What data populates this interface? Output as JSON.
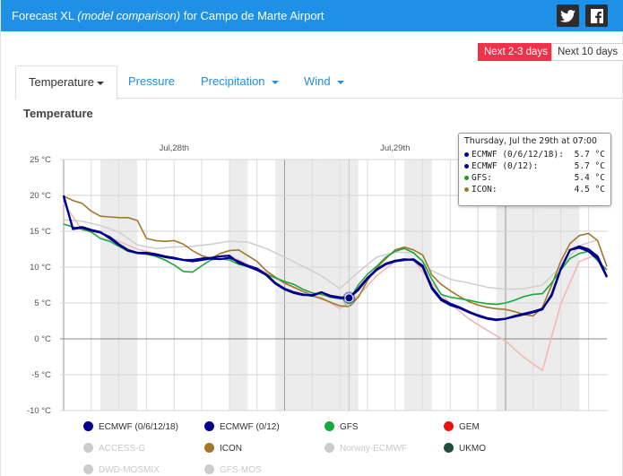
{
  "header": {
    "title_prefix": "Forecast XL",
    "title_em": "(model comparison)",
    "title_suffix": "for Campo de Marte Airport",
    "twitter_icon": "twitter-icon",
    "facebook_icon": "facebook-icon"
  },
  "ranges": {
    "active": "Next 2-3 days",
    "inactive": "Next 10 days"
  },
  "tabs": [
    {
      "label": "Temperature"
    },
    {
      "label": "Pressure"
    },
    {
      "label": "Precipitation"
    },
    {
      "label": "Wind"
    }
  ],
  "panel_title": "Temperature",
  "tooltip": {
    "header": "Thursday, Jul the 29th at 07:00",
    "rows": [
      {
        "label": "ECMWF (0/6/12/18):",
        "value": "5.7 °C",
        "color": "#00008b"
      },
      {
        "label": "ECMWF (0/12):",
        "value": "5.7 °C",
        "color": "#00008b"
      },
      {
        "label": "GFS:",
        "value": "5.4 °C",
        "color": "#229922"
      },
      {
        "label": "ICON:",
        "value": "4.5 °C",
        "color": "#a0782a"
      }
    ]
  },
  "legend": [
    {
      "label": "ECMWF (0/6/12/18)",
      "color": "#00008b",
      "enabled": true
    },
    {
      "label": "ECMWF (0/12)",
      "color": "#00008b",
      "enabled": true
    },
    {
      "label": "GFS",
      "color": "#1aa83c",
      "enabled": true
    },
    {
      "label": "GEM",
      "color": "#ee1111",
      "enabled": true
    },
    {
      "label": "ACCESS-G",
      "color": "#cccccc",
      "enabled": false
    },
    {
      "label": "ICON",
      "color": "#a0782a",
      "enabled": true
    },
    {
      "label": "Norway-ECMWF",
      "color": "#cccccc",
      "enabled": false
    },
    {
      "label": "UKMO",
      "color": "#1f4f3c",
      "enabled": true
    },
    {
      "label": "DWD-MOSMIX",
      "color": "#cccccc",
      "enabled": false
    },
    {
      "label": "GFS-MOS",
      "color": "#cccccc",
      "enabled": false
    }
  ],
  "chart_data": {
    "type": "line",
    "title": "Temperature",
    "x_unit": "hour",
    "x_day_labels": [
      "Jul,28th",
      "Jul,29th"
    ],
    "ylim": [
      -10,
      25
    ],
    "y_ticks": [
      "25 °C",
      "20 °C",
      "15 °C",
      "10 °C",
      "5 °C",
      "0 °C",
      "-5 °C",
      "-10 °C"
    ],
    "y_tick_values": [
      25,
      20,
      15,
      10,
      5,
      0,
      -5,
      -10
    ],
    "xlim": [
      0,
      59
    ],
    "grid": true,
    "legend_position": "bottom",
    "highlight_x": 31,
    "series": [
      {
        "name": "ECMWF (0/6/12/18)",
        "color": "#00008b",
        "x": [
          0,
          1,
          2,
          3,
          4,
          5,
          6,
          7,
          8,
          9,
          10,
          11,
          12,
          13,
          14,
          15,
          16,
          17,
          18,
          19,
          20,
          21,
          22,
          23,
          24,
          25,
          26,
          27,
          28,
          29,
          30,
          31,
          32,
          33,
          34,
          35,
          36,
          37,
          38,
          39,
          40,
          41,
          42,
          43,
          44,
          45,
          46,
          47,
          48,
          49,
          50,
          51,
          52,
          53,
          54,
          55,
          56,
          57,
          58,
          59
        ],
        "values": [
          20,
          15.3,
          15.5,
          15.1,
          14.8,
          14.2,
          13.2,
          12.4,
          12.0,
          12.0,
          11.8,
          11.5,
          11.3,
          11.0,
          10.8,
          11.0,
          11.2,
          11.1,
          11.3,
          10.8,
          10.2,
          9.8,
          9.0,
          7.8,
          7.0,
          6.5,
          6.2,
          6.0,
          6.5,
          6.0,
          5.8,
          5.7,
          6.8,
          8.4,
          9.6,
          10.4,
          10.8,
          11.0,
          11.1,
          10.2,
          7.2,
          5.6,
          4.9,
          4.4,
          3.8,
          3.3,
          2.9,
          2.7,
          2.8,
          3.2,
          3.5,
          3.8,
          4.2,
          6.0,
          9.7,
          12.4,
          12.9,
          12.5,
          11.5,
          8.7
        ]
      },
      {
        "name": "ECMWF (0/12)",
        "color": "#00008b",
        "x": [
          0,
          1,
          2,
          3,
          4,
          5,
          6,
          7,
          8,
          9,
          10,
          11,
          12,
          13,
          14,
          15,
          16,
          17,
          18,
          19,
          20,
          21,
          22,
          23,
          24,
          25,
          26,
          27,
          28,
          29,
          30,
          31,
          32,
          33,
          34,
          35,
          36,
          37,
          38,
          39,
          40,
          41,
          42,
          43,
          44,
          45,
          46,
          47,
          48,
          49,
          50,
          51,
          52,
          53,
          54,
          55,
          56,
          57,
          58,
          59
        ],
        "values": [
          19.8,
          15.4,
          15.6,
          15.2,
          14.9,
          14.0,
          13.1,
          12.3,
          12.0,
          11.9,
          11.7,
          11.4,
          11.2,
          11.0,
          11.0,
          11.2,
          11.3,
          11.5,
          11.6,
          10.6,
          10.1,
          9.6,
          8.9,
          7.7,
          6.9,
          6.4,
          6.1,
          6.1,
          6.5,
          5.9,
          5.7,
          5.7,
          7.0,
          8.5,
          9.7,
          10.5,
          10.9,
          11.1,
          11.0,
          10.0,
          7.0,
          5.4,
          4.7,
          4.3,
          3.7,
          3.2,
          2.8,
          2.6,
          2.8,
          3.1,
          3.4,
          3.7,
          4.1,
          6.2,
          9.8,
          12.4,
          12.7,
          12.2,
          11.2,
          8.6
        ]
      },
      {
        "name": "GFS",
        "color": "#1aa83c",
        "x": [
          0,
          1,
          2,
          3,
          4,
          5,
          6,
          7,
          8,
          9,
          10,
          11,
          12,
          13,
          14,
          15,
          16,
          17,
          18,
          19,
          20,
          21,
          22,
          23,
          24,
          25,
          26,
          27,
          28,
          29,
          30,
          31,
          32,
          33,
          34,
          35,
          36,
          37,
          38,
          39,
          40,
          41,
          42,
          43,
          44,
          45,
          46,
          47,
          48,
          49,
          50,
          51,
          52,
          53,
          54,
          55,
          56,
          57,
          58,
          59
        ],
        "values": [
          16.0,
          15.6,
          15.3,
          14.9,
          14.0,
          13.6,
          12.9,
          12.2,
          11.9,
          11.8,
          11.5,
          11.0,
          10.3,
          9.4,
          9.3,
          10.2,
          11.0,
          11.2,
          11.0,
          10.4,
          10.1,
          9.8,
          9.0,
          8.5,
          8.0,
          7.6,
          6.9,
          6.4,
          6.2,
          5.8,
          5.6,
          5.4,
          7.5,
          9.0,
          10.1,
          11.4,
          12.2,
          12.6,
          12.0,
          10.8,
          8.3,
          6.2,
          5.8,
          5.6,
          5.4,
          5.1,
          4.9,
          4.8,
          5.0,
          5.4,
          5.9,
          6.2,
          6.3,
          7.8,
          9.6,
          11.2,
          11.9,
          12.2,
          10.9,
          9.6
        ]
      },
      {
        "name": "ICON",
        "color": "#a0782a",
        "x": [
          0,
          1,
          2,
          3,
          4,
          5,
          6,
          7,
          8,
          9,
          10,
          11,
          12,
          13,
          14,
          15,
          16,
          17,
          18,
          19,
          20,
          21,
          22,
          23,
          24,
          25,
          26,
          27,
          28,
          29,
          30,
          31,
          32,
          33,
          34,
          35,
          36,
          37,
          38,
          39,
          40,
          41,
          42,
          43,
          44,
          45,
          46,
          47,
          48,
          49,
          50,
          51,
          52,
          53,
          54,
          55,
          56,
          57,
          58,
          59
        ],
        "values": [
          19.9,
          19.3,
          18.9,
          17.8,
          17.1,
          17.0,
          16.9,
          16.9,
          16.5,
          14.0,
          13.7,
          13.6,
          13.7,
          13.2,
          12.3,
          11.6,
          11.2,
          11.9,
          12.3,
          12.4,
          11.6,
          10.8,
          9.5,
          8.6,
          7.8,
          7.2,
          6.6,
          6.0,
          5.6,
          5.1,
          4.6,
          4.5,
          5.8,
          8.1,
          9.9,
          11.2,
          12.4,
          12.8,
          12.4,
          11.7,
          8.9,
          7.6,
          6.7,
          5.9,
          5.2,
          4.7,
          4.4,
          4.2,
          4.1,
          3.8,
          3.4,
          3.2,
          4.4,
          7.5,
          10.8,
          13.3,
          14.4,
          14.7,
          13.7,
          10.1
        ]
      },
      {
        "name": "ACCESS-G",
        "color": "#d0d0d0",
        "x": [
          0,
          2,
          4,
          6,
          8,
          10,
          12,
          14,
          16,
          18,
          20,
          22,
          24,
          26,
          28,
          30,
          32,
          34,
          36,
          38,
          40,
          42,
          44,
          46,
          48,
          50,
          52,
          54,
          56,
          58
        ],
        "values": [
          16.6,
          16.4,
          15.8,
          14.9,
          13.1,
          12.6,
          12.8,
          12.9,
          13.2,
          13.6,
          13.5,
          12.6,
          11.4,
          10.1,
          8.8,
          7.0,
          9.3,
          11.4,
          12.1,
          12.0,
          9.5,
          8.3,
          7.8,
          7.2,
          6.9,
          7.0,
          7.5,
          10.0,
          13.0,
          13.8
        ]
      },
      {
        "name": "DWD-MOSMIX",
        "color": "#f3b8b8",
        "x": [
          0,
          2,
          4,
          6,
          8,
          10,
          12,
          14,
          16,
          18,
          20,
          22,
          24,
          26,
          28,
          30,
          32,
          34,
          36,
          38,
          40,
          42,
          44,
          46,
          48,
          50,
          52,
          54,
          56,
          58
        ],
        "values": [
          18.9,
          15.2,
          14.8,
          13.6,
          12.5,
          11.9,
          11.2,
          10.9,
          11.3,
          11.6,
          10.4,
          9.2,
          7.7,
          6.6,
          5.8,
          4.2,
          6.0,
          8.8,
          10.8,
          11.0,
          7.7,
          4.9,
          2.8,
          1.2,
          -0.3,
          -2.6,
          -4.4,
          4.9,
          10.8,
          11.8
        ]
      }
    ]
  }
}
